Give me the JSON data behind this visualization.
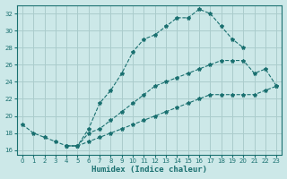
{
  "xlabel": "Humidex (Indice chaleur)",
  "bg_color": "#cce8e8",
  "grid_color": "#aacccc",
  "line_color": "#1a7070",
  "xlim": [
    -0.5,
    23.5
  ],
  "ylim": [
    15.5,
    33.0
  ],
  "xticks": [
    0,
    1,
    2,
    3,
    4,
    5,
    6,
    7,
    8,
    9,
    10,
    11,
    12,
    13,
    14,
    15,
    16,
    17,
    18,
    19,
    20,
    21,
    22,
    23
  ],
  "yticks": [
    16,
    18,
    20,
    22,
    24,
    26,
    28,
    30,
    32
  ],
  "line1_x": [
    0,
    1,
    2,
    3,
    4,
    5,
    6,
    7,
    8,
    9,
    10,
    11,
    12,
    13,
    14,
    15,
    16,
    17,
    18,
    19,
    20
  ],
  "line1_y": [
    19.0,
    18.0,
    17.5,
    17.0,
    16.5,
    16.5,
    18.5,
    21.5,
    23.0,
    25.0,
    27.5,
    29.0,
    29.5,
    30.5,
    31.5,
    31.5,
    32.5,
    32.0,
    30.5,
    29.0,
    28.0
  ],
  "line2_x": [
    4,
    5,
    6,
    7,
    8,
    9,
    10,
    11,
    12,
    13,
    14,
    15,
    16,
    17,
    18,
    19,
    20,
    21,
    22,
    23
  ],
  "line2_y": [
    16.5,
    16.5,
    18.0,
    18.5,
    19.5,
    20.5,
    21.5,
    22.5,
    23.5,
    24.0,
    24.5,
    25.0,
    25.5,
    26.0,
    26.5,
    26.5,
    26.5,
    25.0,
    25.5,
    23.5
  ],
  "line3_x": [
    4,
    5,
    6,
    7,
    8,
    9,
    10,
    11,
    12,
    13,
    14,
    15,
    16,
    17,
    18,
    19,
    20,
    21,
    22,
    23
  ],
  "line3_y": [
    16.5,
    16.5,
    17.0,
    17.5,
    18.0,
    18.5,
    19.0,
    19.5,
    20.0,
    20.5,
    21.0,
    21.5,
    22.0,
    22.5,
    22.5,
    22.5,
    22.5,
    22.5,
    23.0,
    23.5
  ]
}
